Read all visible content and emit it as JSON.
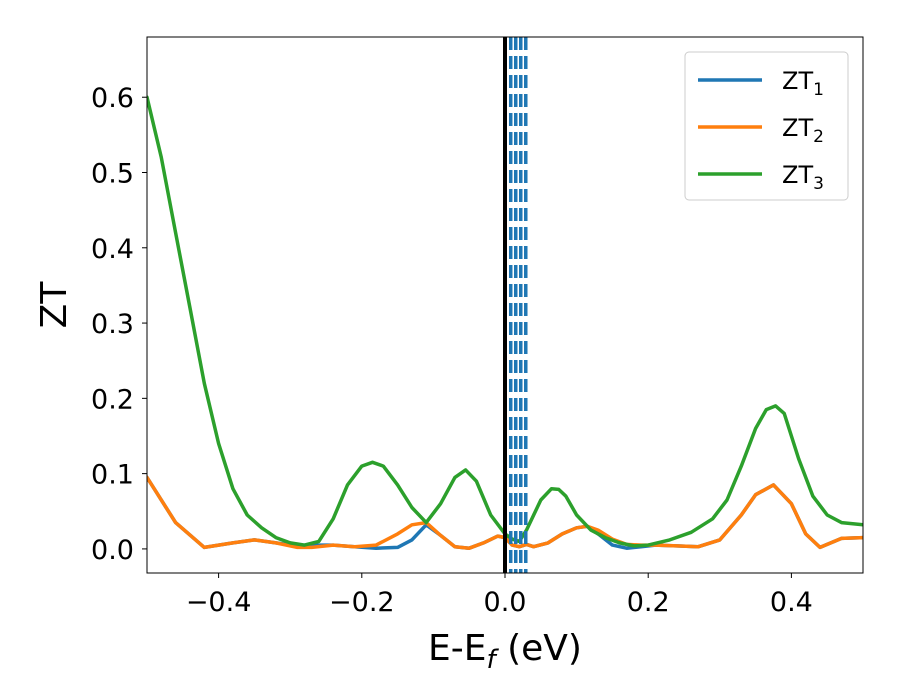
{
  "chart_data": {
    "type": "line",
    "xlabel": "E-E_f (eV)",
    "ylabel": "ZT",
    "xlim": [
      -0.5,
      0.5
    ],
    "ylim": [
      -0.032,
      0.68
    ],
    "xticks": [
      -0.4,
      -0.2,
      0.0,
      0.2,
      0.4
    ],
    "xtick_labels": [
      "−0.4",
      "−0.2",
      "0.0",
      "0.2",
      "0.4"
    ],
    "yticks": [
      0.0,
      0.1,
      0.2,
      0.3,
      0.4,
      0.5,
      0.6
    ],
    "ytick_labels": [
      "0.0",
      "0.1",
      "0.2",
      "0.3",
      "0.4",
      "0.5",
      "0.6"
    ],
    "legend_position": "top-right",
    "grid": false,
    "series": [
      {
        "name": "ZT_1",
        "color": "#1f77b4",
        "x": [
          -0.5,
          -0.46,
          -0.42,
          -0.38,
          -0.35,
          -0.32,
          -0.29,
          -0.27,
          -0.24,
          -0.21,
          -0.18,
          -0.15,
          -0.13,
          -0.11,
          -0.09,
          -0.07,
          -0.05,
          -0.03,
          -0.01,
          0.0,
          0.005,
          0.01,
          0.02,
          0.03,
          0.04,
          0.06,
          0.08,
          0.1,
          0.115,
          0.13,
          0.15,
          0.17,
          0.19,
          0.21,
          0.24,
          0.27,
          0.3,
          0.33,
          0.35,
          0.375,
          0.4,
          0.42,
          0.44,
          0.47,
          0.5
        ],
        "y": [
          0.095,
          0.035,
          0.002,
          0.008,
          0.012,
          0.008,
          0.004,
          0.005,
          0.005,
          0.003,
          0.001,
          0.002,
          0.012,
          0.032,
          0.018,
          0.003,
          0.001,
          0.008,
          0.017,
          0.015,
          0.01,
          0.005,
          0.003,
          0.006,
          0.003,
          0.008,
          0.02,
          0.028,
          0.03,
          0.02,
          0.005,
          0.001,
          0.003,
          0.005,
          0.004,
          0.003,
          0.012,
          0.045,
          0.072,
          0.085,
          0.06,
          0.02,
          0.002,
          0.014,
          0.015
        ]
      },
      {
        "name": "ZT_2",
        "color": "#ff7f0e",
        "x": [
          -0.5,
          -0.46,
          -0.42,
          -0.38,
          -0.35,
          -0.32,
          -0.29,
          -0.27,
          -0.24,
          -0.21,
          -0.18,
          -0.15,
          -0.13,
          -0.11,
          -0.09,
          -0.07,
          -0.05,
          -0.03,
          -0.01,
          0.0,
          0.005,
          0.01,
          0.02,
          0.03,
          0.04,
          0.06,
          0.08,
          0.1,
          0.115,
          0.13,
          0.15,
          0.17,
          0.19,
          0.21,
          0.24,
          0.27,
          0.3,
          0.33,
          0.35,
          0.375,
          0.4,
          0.42,
          0.44,
          0.47,
          0.5
        ],
        "y": [
          0.095,
          0.035,
          0.002,
          0.008,
          0.012,
          0.008,
          0.002,
          0.002,
          0.005,
          0.003,
          0.005,
          0.02,
          0.032,
          0.035,
          0.018,
          0.003,
          0.001,
          0.008,
          0.017,
          0.015,
          0.01,
          0.005,
          0.003,
          0.006,
          0.003,
          0.008,
          0.02,
          0.028,
          0.03,
          0.025,
          0.013,
          0.006,
          0.005,
          0.005,
          0.004,
          0.003,
          0.012,
          0.045,
          0.072,
          0.085,
          0.06,
          0.02,
          0.002,
          0.014,
          0.015
        ]
      },
      {
        "name": "ZT_3",
        "color": "#2ca02c",
        "x": [
          -0.5,
          -0.48,
          -0.46,
          -0.44,
          -0.42,
          -0.4,
          -0.38,
          -0.36,
          -0.34,
          -0.32,
          -0.3,
          -0.28,
          -0.26,
          -0.24,
          -0.22,
          -0.2,
          -0.185,
          -0.17,
          -0.15,
          -0.13,
          -0.11,
          -0.09,
          -0.07,
          -0.055,
          -0.04,
          -0.02,
          0.0,
          0.01,
          0.02,
          0.03,
          0.05,
          0.065,
          0.075,
          0.085,
          0.1,
          0.12,
          0.14,
          0.16,
          0.18,
          0.2,
          0.23,
          0.26,
          0.29,
          0.31,
          0.33,
          0.35,
          0.365,
          0.378,
          0.39,
          0.41,
          0.43,
          0.45,
          0.47,
          0.5
        ],
        "y": [
          0.6,
          0.52,
          0.42,
          0.32,
          0.22,
          0.14,
          0.08,
          0.045,
          0.028,
          0.015,
          0.008,
          0.005,
          0.01,
          0.04,
          0.085,
          0.11,
          0.115,
          0.11,
          0.085,
          0.055,
          0.035,
          0.06,
          0.095,
          0.105,
          0.09,
          0.045,
          0.02,
          0.013,
          0.01,
          0.025,
          0.065,
          0.08,
          0.079,
          0.07,
          0.045,
          0.025,
          0.015,
          0.008,
          0.004,
          0.005,
          0.012,
          0.022,
          0.04,
          0.065,
          0.11,
          0.16,
          0.185,
          0.19,
          0.18,
          0.12,
          0.07,
          0.045,
          0.035,
          0.032
        ]
      }
    ],
    "reference_lines": [
      {
        "type": "vertical",
        "x": 0.0,
        "style": "solid",
        "color": "#000000"
      },
      {
        "type": "vertical",
        "x": 0.008,
        "style": "dashed",
        "color": "#1f77b4"
      },
      {
        "type": "vertical",
        "x": 0.015,
        "style": "dashed",
        "color": "#1f77b4"
      },
      {
        "type": "vertical",
        "x": 0.022,
        "style": "dashed",
        "color": "#1f77b4"
      },
      {
        "type": "vertical",
        "x": 0.029,
        "style": "dashed",
        "color": "#1f77b4"
      }
    ]
  }
}
